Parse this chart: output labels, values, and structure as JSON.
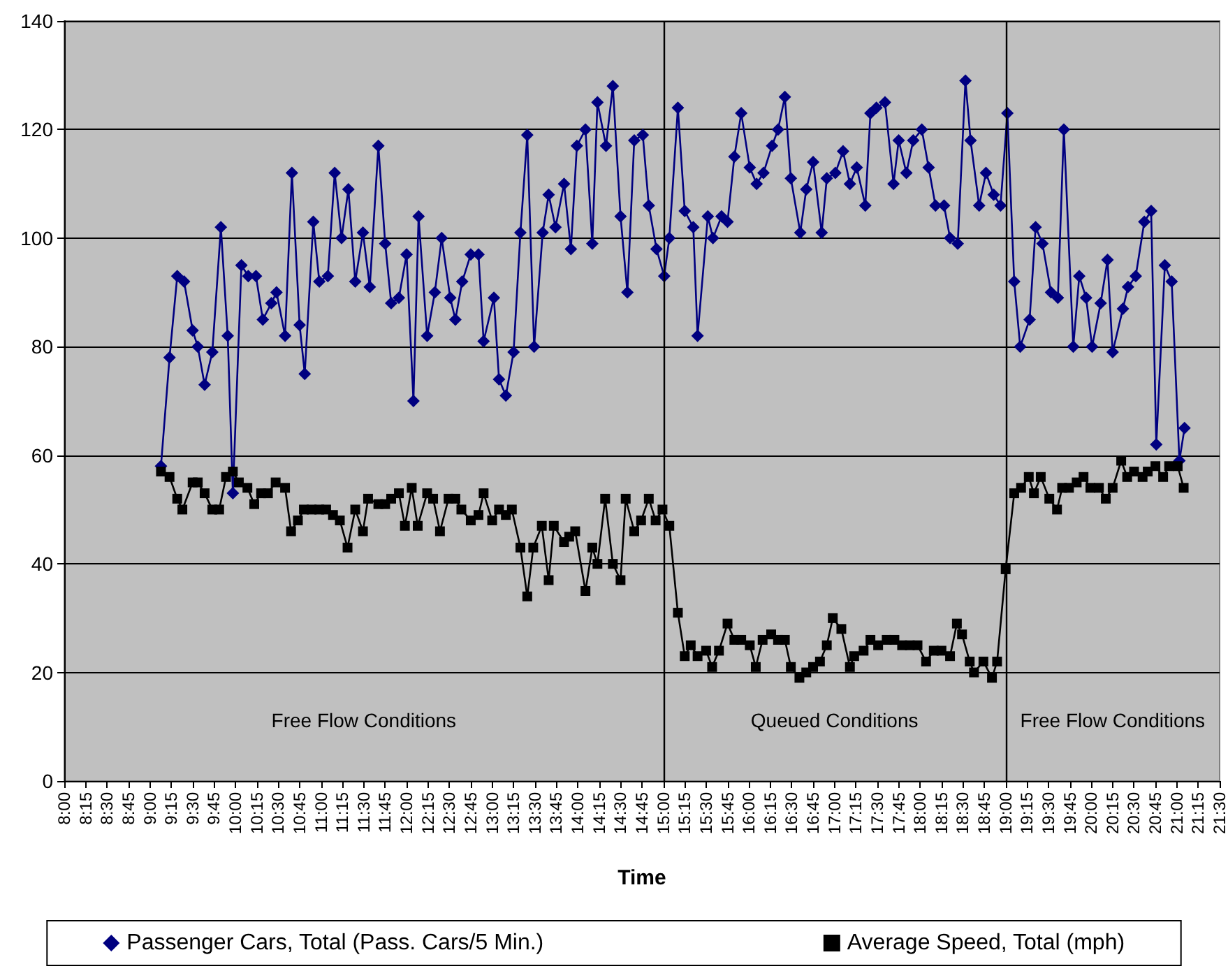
{
  "chart_data": {
    "type": "line",
    "xlabel": "Time",
    "legend": "bottom",
    "grid": "y",
    "ylim": [
      0,
      140
    ],
    "yticks": [
      0,
      20,
      40,
      60,
      80,
      100,
      120,
      140
    ],
    "xlim": [
      8,
      21.5
    ],
    "xticks": [
      {
        "value": 8,
        "label": "8:00"
      },
      {
        "value": 8.25,
        "label": "8:15"
      },
      {
        "value": 8.5,
        "label": "8:30"
      },
      {
        "value": 8.75,
        "label": "8:45"
      },
      {
        "value": 9,
        "label": "9:00"
      },
      {
        "value": 9.25,
        "label": "9:15"
      },
      {
        "value": 9.5,
        "label": "9:30"
      },
      {
        "value": 9.75,
        "label": "9:45"
      },
      {
        "value": 10,
        "label": "10:00"
      },
      {
        "value": 10.25,
        "label": "10:15"
      },
      {
        "value": 10.5,
        "label": "10:30"
      },
      {
        "value": 10.75,
        "label": "10:45"
      },
      {
        "value": 11,
        "label": "11:00"
      },
      {
        "value": 11.25,
        "label": "11:15"
      },
      {
        "value": 11.5,
        "label": "11:30"
      },
      {
        "value": 11.75,
        "label": "11:45"
      },
      {
        "value": 12,
        "label": "12:00"
      },
      {
        "value": 12.25,
        "label": "12:15"
      },
      {
        "value": 12.5,
        "label": "12:30"
      },
      {
        "value": 12.75,
        "label": "12:45"
      },
      {
        "value": 13,
        "label": "13:00"
      },
      {
        "value": 13.25,
        "label": "13:15"
      },
      {
        "value": 13.5,
        "label": "13:30"
      },
      {
        "value": 13.75,
        "label": "13:45"
      },
      {
        "value": 14,
        "label": "14:00"
      },
      {
        "value": 14.25,
        "label": "14:15"
      },
      {
        "value": 14.5,
        "label": "14:30"
      },
      {
        "value": 14.75,
        "label": "14:45"
      },
      {
        "value": 15,
        "label": "15:00"
      },
      {
        "value": 15.25,
        "label": "15:15"
      },
      {
        "value": 15.5,
        "label": "15:30"
      },
      {
        "value": 15.75,
        "label": "15:45"
      },
      {
        "value": 16,
        "label": "16:00"
      },
      {
        "value": 16.25,
        "label": "16:15"
      },
      {
        "value": 16.5,
        "label": "16:30"
      },
      {
        "value": 16.75,
        "label": "16:45"
      },
      {
        "value": 17,
        "label": "17:00"
      },
      {
        "value": 17.25,
        "label": "17:15"
      },
      {
        "value": 17.5,
        "label": "17:30"
      },
      {
        "value": 17.75,
        "label": "17:45"
      },
      {
        "value": 18,
        "label": "18:00"
      },
      {
        "value": 18.25,
        "label": "18:15"
      },
      {
        "value": 18.5,
        "label": "18:30"
      },
      {
        "value": 18.75,
        "label": "18:45"
      },
      {
        "value": 19,
        "label": "19:00"
      },
      {
        "value": 19.25,
        "label": "19:15"
      },
      {
        "value": 19.5,
        "label": "19:30"
      },
      {
        "value": 19.75,
        "label": "19:45"
      },
      {
        "value": 20,
        "label": "20:00"
      },
      {
        "value": 20.25,
        "label": "20:15"
      },
      {
        "value": 20.5,
        "label": "20:30"
      },
      {
        "value": 20.75,
        "label": "20:45"
      },
      {
        "value": 21,
        "label": "21:00"
      },
      {
        "value": 21.25,
        "label": "21:15"
      },
      {
        "value": 21.5,
        "label": "21:30"
      }
    ],
    "ref_lines": [
      {
        "axis": "x",
        "value": 15,
        "color": "#000000"
      },
      {
        "axis": "x",
        "value": 19,
        "color": "#000000"
      }
    ],
    "annotations": [
      "Free Flow Conditions",
      "Queued Conditions",
      "Free Flow Conditions"
    ],
    "series": [
      {
        "name": "Passenger Cars, Total (Pass. Cars/5 Min.)",
        "color": "#000080",
        "marker": "diamond",
        "x": [
          9.13,
          9.23,
          9.32,
          9.4,
          9.5,
          9.56,
          9.64,
          9.73,
          9.83,
          9.91,
          9.97,
          10.07,
          10.15,
          10.24,
          10.32,
          10.42,
          10.48,
          10.58,
          10.66,
          10.75,
          10.81,
          10.91,
          10.98,
          11.08,
          11.16,
          11.24,
          11.32,
          11.4,
          11.49,
          11.57,
          11.67,
          11.75,
          11.82,
          11.91,
          12.0,
          12.08,
          12.14,
          12.24,
          12.33,
          12.41,
          12.51,
          12.57,
          12.65,
          12.75,
          12.84,
          12.9,
          13.02,
          13.08,
          13.16,
          13.25,
          13.33,
          13.41,
          13.49,
          13.59,
          13.66,
          13.74,
          13.84,
          13.92,
          13.99,
          14.09,
          14.17,
          14.23,
          14.33,
          14.41,
          14.5,
          14.58,
          14.66,
          14.76,
          14.83,
          14.92,
          15.01,
          15.07,
          15.17,
          15.25,
          15.35,
          15.4,
          15.52,
          15.58,
          15.68,
          15.75,
          15.83,
          15.91,
          16.01,
          16.09,
          16.17,
          16.27,
          16.34,
          16.42,
          16.49,
          16.6,
          16.67,
          16.75,
          16.85,
          16.91,
          17.01,
          17.1,
          17.18,
          17.26,
          17.36,
          17.42,
          17.49,
          17.59,
          17.69,
          17.75,
          17.84,
          17.92,
          18.02,
          18.1,
          18.18,
          18.28,
          18.35,
          18.44,
          18.53,
          18.59,
          18.69,
          18.77,
          18.86,
          18.94,
          19.02,
          19.1,
          19.17,
          19.28,
          19.35,
          19.43,
          19.53,
          19.61,
          19.68,
          19.79,
          19.86,
          19.94,
          20.01,
          20.11,
          20.19,
          20.25,
          20.37,
          20.43,
          20.52,
          20.62,
          20.7,
          20.76,
          20.86,
          20.94,
          21.03,
          21.09
        ],
        "values": [
          58,
          78,
          93,
          92,
          83,
          80,
          73,
          79,
          102,
          82,
          53,
          95,
          93,
          93,
          85,
          88,
          90,
          82,
          112,
          84,
          75,
          103,
          92,
          93,
          112,
          100,
          109,
          92,
          101,
          91,
          117,
          99,
          88,
          89,
          97,
          70,
          104,
          82,
          90,
          100,
          89,
          85,
          92,
          97,
          97,
          81,
          89,
          74,
          71,
          79,
          101,
          119,
          80,
          101,
          108,
          102,
          110,
          98,
          117,
          120,
          99,
          125,
          117,
          128,
          104,
          90,
          118,
          119,
          106,
          98,
          93,
          100,
          124,
          105,
          102,
          82,
          104,
          100,
          104,
          103,
          115,
          123,
          113,
          110,
          112,
          117,
          120,
          126,
          111,
          101,
          109,
          114,
          101,
          111,
          112,
          116,
          110,
          113,
          106,
          123,
          124,
          125,
          110,
          118,
          112,
          118,
          120,
          113,
          106,
          106,
          100,
          99,
          129,
          118,
          106,
          112,
          108,
          106,
          123,
          92,
          80,
          85,
          102,
          99,
          90,
          89,
          120,
          80,
          93,
          89,
          80,
          88,
          96,
          79,
          87,
          91,
          93,
          103,
          105,
          62,
          95,
          92,
          59,
          65
        ]
      },
      {
        "name": "Average Speed, Total (mph)",
        "color": "#000000",
        "marker": "square",
        "x": [
          9.13,
          9.23,
          9.32,
          9.38,
          9.5,
          9.56,
          9.64,
          9.73,
          9.81,
          9.89,
          9.97,
          10.04,
          10.14,
          10.22,
          10.3,
          10.38,
          10.47,
          10.58,
          10.65,
          10.73,
          10.8,
          10.89,
          10.98,
          11.06,
          11.14,
          11.22,
          11.31,
          11.4,
          11.49,
          11.55,
          11.67,
          11.75,
          11.82,
          11.91,
          11.98,
          12.06,
          12.13,
          12.24,
          12.31,
          12.39,
          12.49,
          12.57,
          12.64,
          12.75,
          12.84,
          12.9,
          13.0,
          13.08,
          13.16,
          13.23,
          13.33,
          13.41,
          13.48,
          13.58,
          13.66,
          13.72,
          13.84,
          13.9,
          13.97,
          14.09,
          14.17,
          14.23,
          14.32,
          14.41,
          14.5,
          14.56,
          14.66,
          14.74,
          14.83,
          14.91,
          14.99,
          15.07,
          15.17,
          15.25,
          15.32,
          15.4,
          15.5,
          15.57,
          15.65,
          15.75,
          15.83,
          15.91,
          16.01,
          16.08,
          16.16,
          16.26,
          16.34,
          16.42,
          16.49,
          16.59,
          16.67,
          16.75,
          16.83,
          16.91,
          16.98,
          17.08,
          17.18,
          17.23,
          17.34,
          17.42,
          17.51,
          17.61,
          17.7,
          17.79,
          17.88,
          17.97,
          18.07,
          18.16,
          18.25,
          18.35,
          18.43,
          18.49,
          18.58,
          18.63,
          18.74,
          18.84,
          18.9,
          19.0,
          19.1,
          19.18,
          19.27,
          19.33,
          19.41,
          19.51,
          19.6,
          19.66,
          19.74,
          19.83,
          19.91,
          19.99,
          20.09,
          20.17,
          20.25,
          20.35,
          20.42,
          20.5,
          20.6,
          20.66,
          20.75,
          20.84,
          20.91,
          21.01,
          21.08
        ],
        "values": [
          57,
          56,
          52,
          50,
          55,
          55,
          53,
          50,
          50,
          56,
          57,
          55,
          54,
          51,
          53,
          53,
          55,
          54,
          46,
          48,
          50,
          50,
          50,
          50,
          49,
          48,
          43,
          50,
          46,
          52,
          51,
          51,
          52,
          53,
          47,
          54,
          47,
          53,
          52,
          46,
          52,
          52,
          50,
          48,
          49,
          53,
          48,
          50,
          49,
          50,
          43,
          34,
          43,
          47,
          37,
          47,
          44,
          45,
          46,
          35,
          43,
          40,
          52,
          40,
          37,
          52,
          46,
          48,
          52,
          48,
          50,
          47,
          31,
          23,
          25,
          23,
          24,
          21,
          24,
          29,
          26,
          26,
          25,
          21,
          26,
          27,
          26,
          26,
          21,
          19,
          20,
          21,
          22,
          25,
          30,
          28,
          21,
          23,
          24,
          26,
          25,
          26,
          26,
          25,
          25,
          25,
          22,
          24,
          24,
          23,
          29,
          27,
          22,
          20,
          22,
          19,
          22,
          39,
          53,
          54,
          56,
          53,
          56,
          52,
          50,
          54,
          54,
          55,
          56,
          54,
          54,
          52,
          54,
          59,
          56,
          57,
          56,
          57,
          58,
          56,
          58,
          58,
          54
        ]
      }
    ]
  }
}
